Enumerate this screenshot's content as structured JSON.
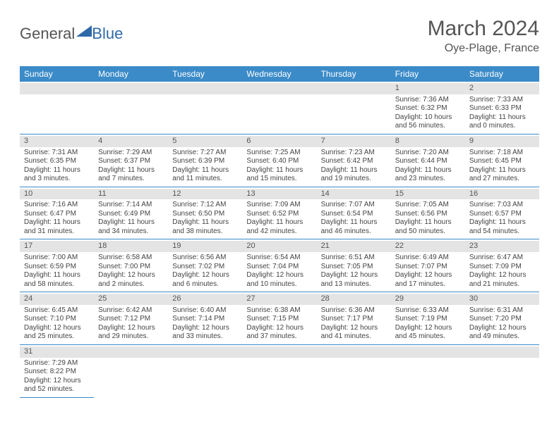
{
  "logo": {
    "general": "General",
    "blue": "Blue"
  },
  "title": "March 2024",
  "location": "Oye-Plage, France",
  "colors": {
    "header_bg": "#3b8bc8",
    "header_text": "#ffffff",
    "daynum_bg": "#e4e4e4",
    "cell_border": "#3b8bc8",
    "text": "#444444"
  },
  "weekdays": [
    "Sunday",
    "Monday",
    "Tuesday",
    "Wednesday",
    "Thursday",
    "Friday",
    "Saturday"
  ],
  "weeks": [
    [
      null,
      null,
      null,
      null,
      null,
      {
        "n": "1",
        "sr": "Sunrise: 7:36 AM",
        "ss": "Sunset: 6:32 PM",
        "dl": "Daylight: 10 hours and 56 minutes."
      },
      {
        "n": "2",
        "sr": "Sunrise: 7:33 AM",
        "ss": "Sunset: 6:33 PM",
        "dl": "Daylight: 11 hours and 0 minutes."
      }
    ],
    [
      {
        "n": "3",
        "sr": "Sunrise: 7:31 AM",
        "ss": "Sunset: 6:35 PM",
        "dl": "Daylight: 11 hours and 3 minutes."
      },
      {
        "n": "4",
        "sr": "Sunrise: 7:29 AM",
        "ss": "Sunset: 6:37 PM",
        "dl": "Daylight: 11 hours and 7 minutes."
      },
      {
        "n": "5",
        "sr": "Sunrise: 7:27 AM",
        "ss": "Sunset: 6:39 PM",
        "dl": "Daylight: 11 hours and 11 minutes."
      },
      {
        "n": "6",
        "sr": "Sunrise: 7:25 AM",
        "ss": "Sunset: 6:40 PM",
        "dl": "Daylight: 11 hours and 15 minutes."
      },
      {
        "n": "7",
        "sr": "Sunrise: 7:23 AM",
        "ss": "Sunset: 6:42 PM",
        "dl": "Daylight: 11 hours and 19 minutes."
      },
      {
        "n": "8",
        "sr": "Sunrise: 7:20 AM",
        "ss": "Sunset: 6:44 PM",
        "dl": "Daylight: 11 hours and 23 minutes."
      },
      {
        "n": "9",
        "sr": "Sunrise: 7:18 AM",
        "ss": "Sunset: 6:45 PM",
        "dl": "Daylight: 11 hours and 27 minutes."
      }
    ],
    [
      {
        "n": "10",
        "sr": "Sunrise: 7:16 AM",
        "ss": "Sunset: 6:47 PM",
        "dl": "Daylight: 11 hours and 31 minutes."
      },
      {
        "n": "11",
        "sr": "Sunrise: 7:14 AM",
        "ss": "Sunset: 6:49 PM",
        "dl": "Daylight: 11 hours and 34 minutes."
      },
      {
        "n": "12",
        "sr": "Sunrise: 7:12 AM",
        "ss": "Sunset: 6:50 PM",
        "dl": "Daylight: 11 hours and 38 minutes."
      },
      {
        "n": "13",
        "sr": "Sunrise: 7:09 AM",
        "ss": "Sunset: 6:52 PM",
        "dl": "Daylight: 11 hours and 42 minutes."
      },
      {
        "n": "14",
        "sr": "Sunrise: 7:07 AM",
        "ss": "Sunset: 6:54 PM",
        "dl": "Daylight: 11 hours and 46 minutes."
      },
      {
        "n": "15",
        "sr": "Sunrise: 7:05 AM",
        "ss": "Sunset: 6:56 PM",
        "dl": "Daylight: 11 hours and 50 minutes."
      },
      {
        "n": "16",
        "sr": "Sunrise: 7:03 AM",
        "ss": "Sunset: 6:57 PM",
        "dl": "Daylight: 11 hours and 54 minutes."
      }
    ],
    [
      {
        "n": "17",
        "sr": "Sunrise: 7:00 AM",
        "ss": "Sunset: 6:59 PM",
        "dl": "Daylight: 11 hours and 58 minutes."
      },
      {
        "n": "18",
        "sr": "Sunrise: 6:58 AM",
        "ss": "Sunset: 7:00 PM",
        "dl": "Daylight: 12 hours and 2 minutes."
      },
      {
        "n": "19",
        "sr": "Sunrise: 6:56 AM",
        "ss": "Sunset: 7:02 PM",
        "dl": "Daylight: 12 hours and 6 minutes."
      },
      {
        "n": "20",
        "sr": "Sunrise: 6:54 AM",
        "ss": "Sunset: 7:04 PM",
        "dl": "Daylight: 12 hours and 10 minutes."
      },
      {
        "n": "21",
        "sr": "Sunrise: 6:51 AM",
        "ss": "Sunset: 7:05 PM",
        "dl": "Daylight: 12 hours and 13 minutes."
      },
      {
        "n": "22",
        "sr": "Sunrise: 6:49 AM",
        "ss": "Sunset: 7:07 PM",
        "dl": "Daylight: 12 hours and 17 minutes."
      },
      {
        "n": "23",
        "sr": "Sunrise: 6:47 AM",
        "ss": "Sunset: 7:09 PM",
        "dl": "Daylight: 12 hours and 21 minutes."
      }
    ],
    [
      {
        "n": "24",
        "sr": "Sunrise: 6:45 AM",
        "ss": "Sunset: 7:10 PM",
        "dl": "Daylight: 12 hours and 25 minutes."
      },
      {
        "n": "25",
        "sr": "Sunrise: 6:42 AM",
        "ss": "Sunset: 7:12 PM",
        "dl": "Daylight: 12 hours and 29 minutes."
      },
      {
        "n": "26",
        "sr": "Sunrise: 6:40 AM",
        "ss": "Sunset: 7:14 PM",
        "dl": "Daylight: 12 hours and 33 minutes."
      },
      {
        "n": "27",
        "sr": "Sunrise: 6:38 AM",
        "ss": "Sunset: 7:15 PM",
        "dl": "Daylight: 12 hours and 37 minutes."
      },
      {
        "n": "28",
        "sr": "Sunrise: 6:36 AM",
        "ss": "Sunset: 7:17 PM",
        "dl": "Daylight: 12 hours and 41 minutes."
      },
      {
        "n": "29",
        "sr": "Sunrise: 6:33 AM",
        "ss": "Sunset: 7:19 PM",
        "dl": "Daylight: 12 hours and 45 minutes."
      },
      {
        "n": "30",
        "sr": "Sunrise: 6:31 AM",
        "ss": "Sunset: 7:20 PM",
        "dl": "Daylight: 12 hours and 49 minutes."
      }
    ],
    [
      {
        "n": "31",
        "sr": "Sunrise: 7:29 AM",
        "ss": "Sunset: 8:22 PM",
        "dl": "Daylight: 12 hours and 52 minutes."
      },
      null,
      null,
      null,
      null,
      null,
      null
    ]
  ]
}
